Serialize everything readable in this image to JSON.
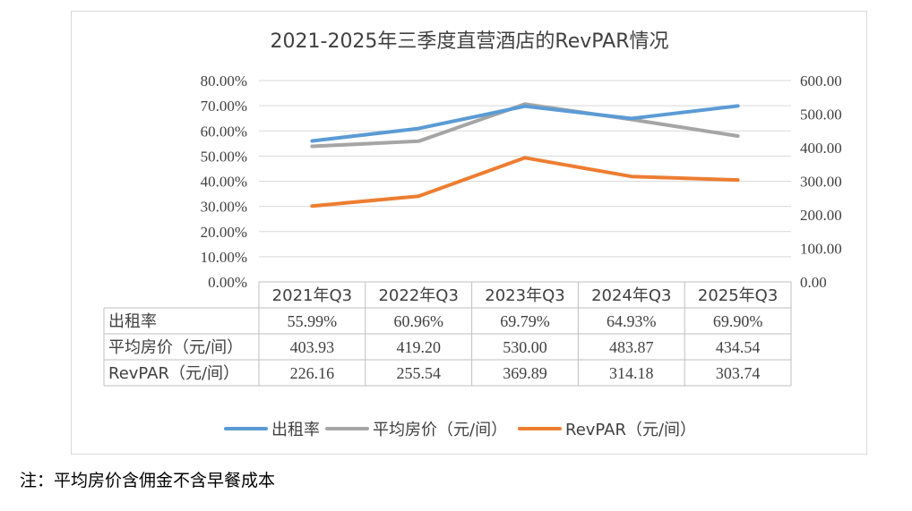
{
  "footnote": "注：平均房价含佣金不含早餐成本",
  "chart_data": {
    "type": "line",
    "title": "2021-2025年三季度直营酒店的RevPAR情况",
    "categories": [
      "2021年Q3",
      "2022年Q3",
      "2023年Q3",
      "2024年Q3",
      "2025年Q3"
    ],
    "left_axis": {
      "ylim": [
        0,
        0.8
      ],
      "ticks": [
        "0.00%",
        "10.00%",
        "20.00%",
        "30.00%",
        "40.00%",
        "50.00%",
        "60.00%",
        "70.00%",
        "80.00%"
      ]
    },
    "right_axis": {
      "ylim": [
        0,
        600
      ],
      "ticks": [
        "0.00",
        "100.00",
        "200.00",
        "300.00",
        "400.00",
        "500.00",
        "600.00"
      ]
    },
    "grid": true,
    "legend_position": "bottom",
    "series": [
      {
        "name": "出租率",
        "axis": "left",
        "color": "#5b9bd5",
        "values": [
          0.5599,
          0.6096,
          0.6979,
          0.6493,
          0.699
        ],
        "labels": [
          "55.99%",
          "60.96%",
          "69.79%",
          "64.93%",
          "69.90%"
        ]
      },
      {
        "name": "平均房价（元/间）",
        "axis": "right",
        "color": "#a5a5a5",
        "values": [
          403.93,
          419.2,
          530.0,
          483.87,
          434.54
        ],
        "labels": [
          "403.93",
          "419.20",
          "530.00",
          "483.87",
          "434.54"
        ]
      },
      {
        "name": "RevPAR（元/间）",
        "axis": "right",
        "color": "#ed7d31",
        "values": [
          226.16,
          255.54,
          369.89,
          314.18,
          303.74
        ],
        "labels": [
          "226.16",
          "255.54",
          "369.89",
          "314.18",
          "303.74"
        ]
      }
    ]
  }
}
